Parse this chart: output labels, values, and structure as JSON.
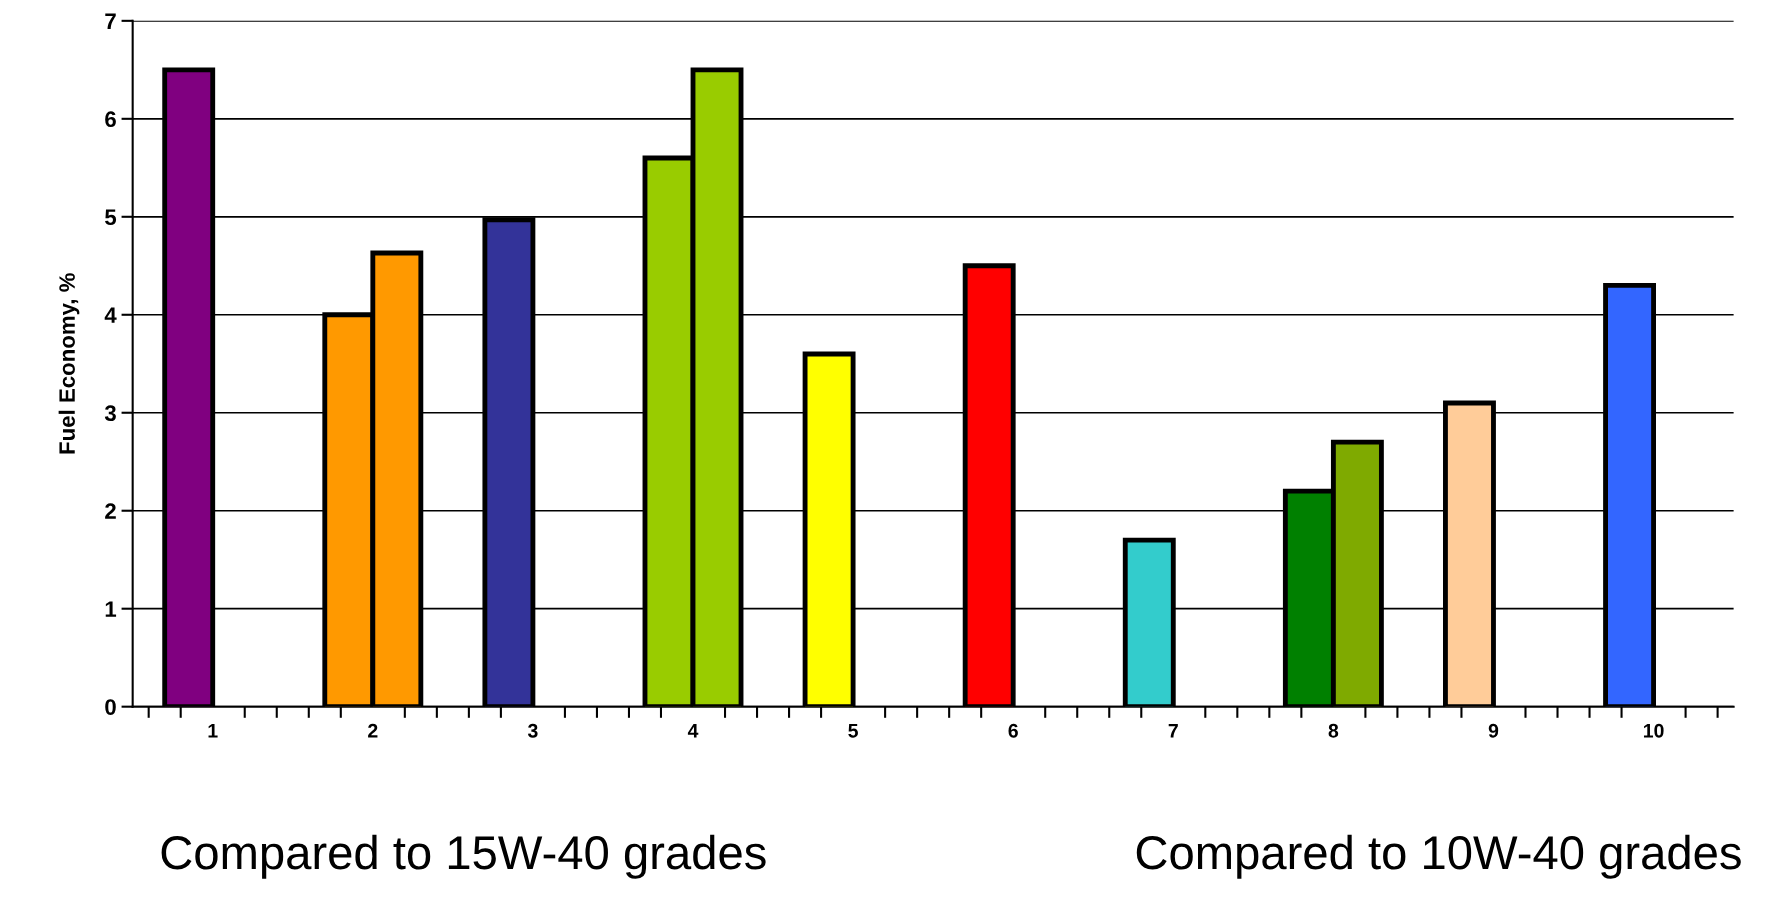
{
  "chart_data": {
    "type": "bar",
    "ylabel": "Fuel Economy, %",
    "categories": [
      "1",
      "2",
      "3",
      "4",
      "5",
      "6",
      "7",
      "8",
      "9",
      "10"
    ],
    "series": [
      {
        "values": [
          6.5,
          4.0,
          4.97,
          5.6,
          3.6,
          4.5,
          1.7,
          2.2,
          3.1,
          4.3
        ],
        "colors": [
          "#800080",
          "#ff9900",
          "#333399",
          "#99cc00",
          "#ffff00",
          "#ff0000",
          "#33cccc",
          "#008000",
          "#ffcc99",
          "#3366ff"
        ]
      },
      {
        "values": [
          null,
          4.63,
          null,
          6.5,
          null,
          null,
          null,
          2.7,
          null,
          null
        ],
        "colors": [
          "#800080",
          "#ff9900",
          "#333399",
          "#99cc00",
          "#ffff00",
          "#ff0000",
          "#33cccc",
          "#7faa00",
          "#ffcc99",
          "#3366ff"
        ]
      }
    ],
    "ylim": [
      0,
      7
    ],
    "yticks": [
      0,
      1,
      2,
      3,
      4,
      5,
      6,
      7
    ],
    "grid": "y",
    "annotations": [
      "Compared to 15W-40 grades",
      "Compared to 10W-40 grades"
    ]
  }
}
